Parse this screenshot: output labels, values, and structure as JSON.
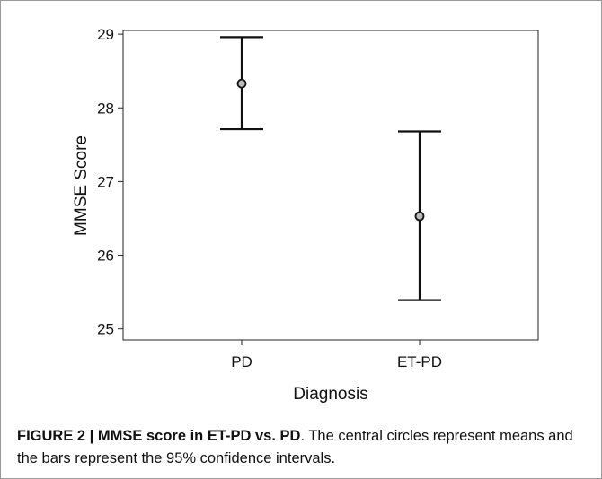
{
  "chart_data": {
    "type": "errorbar",
    "categories": [
      "PD",
      "ET-PD"
    ],
    "means": [
      28.33,
      26.53
    ],
    "ci_lower": [
      27.71,
      25.39
    ],
    "ci_upper": [
      28.96,
      27.68
    ],
    "ylim": [
      24.85,
      29.05
    ],
    "yticks": [
      "25",
      "26",
      "27",
      "28",
      "29"
    ],
    "ylabel": "MMSE Score",
    "xlabel": "Diagnosis",
    "grid": false,
    "legend": "none"
  },
  "caption": {
    "lead": "FIGURE 2 | MMSE score in ET-PD vs. PD",
    "text": ". The central circles represent means and the bars represent the 95% confidence intervals."
  }
}
